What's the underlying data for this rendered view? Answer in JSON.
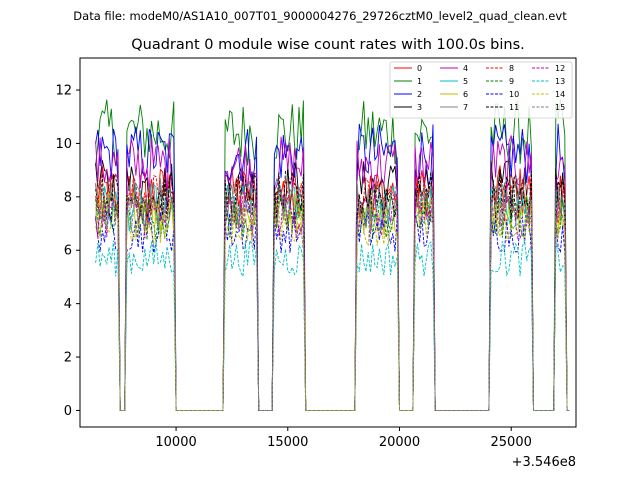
{
  "chart_data": {
    "type": "line",
    "suptitle": "Data file: modeM0/AS1A10_007T01_9000004276_29726cztM0_level2_quad_clean.evt",
    "title": "Quadrant 0 module wise count rates with 100.0s bins.",
    "xlabel": "",
    "ylabel": "",
    "x_offset_label": "+3.546e8",
    "xlim": [
      5700,
      27900
    ],
    "ylim": [
      -0.62,
      13.2
    ],
    "xticks": [
      10000,
      15000,
      20000,
      25000
    ],
    "xtick_labels": [
      "10000",
      "15000",
      "20000",
      "25000"
    ],
    "yticks": [
      0,
      2,
      4,
      6,
      8,
      10,
      12
    ],
    "ytick_labels": [
      "0",
      "2",
      "4",
      "6",
      "8",
      "10",
      "12"
    ],
    "grid": false,
    "legend_position": "top-right",
    "bin_width_s": 100,
    "segments": [
      {
        "start": 6400,
        "end": 7450
      },
      {
        "start": 7800,
        "end": 9900
      },
      {
        "start": 12200,
        "end": 13600
      },
      {
        "start": 14400,
        "end": 15700
      },
      {
        "start": 18100,
        "end": 19950
      },
      {
        "start": 20650,
        "end": 21500
      },
      {
        "start": 24050,
        "end": 25950
      },
      {
        "start": 26950,
        "end": 27400
      }
    ],
    "series": [
      {
        "name": "0",
        "color": "#ff0000",
        "dash": "solid",
        "mean_rate": 8.2
      },
      {
        "name": "1",
        "color": "#008000",
        "dash": "solid",
        "mean_rate": 10.4
      },
      {
        "name": "2",
        "color": "#0000ff",
        "dash": "solid",
        "mean_rate": 9.6
      },
      {
        "name": "3",
        "color": "#000000",
        "dash": "solid",
        "mean_rate": 8.4
      },
      {
        "name": "4",
        "color": "#bf00bf",
        "dash": "solid",
        "mean_rate": 9.2
      },
      {
        "name": "5",
        "color": "#00bfbf",
        "dash": "solid",
        "mean_rate": 7.6
      },
      {
        "name": "6",
        "color": "#bfbf00",
        "dash": "solid",
        "mean_rate": 7.4
      },
      {
        "name": "7",
        "color": "#808080",
        "dash": "solid",
        "mean_rate": 7.8
      },
      {
        "name": "8",
        "color": "#ff0000",
        "dash": "dashed",
        "mean_rate": 7.9
      },
      {
        "name": "9",
        "color": "#008000",
        "dash": "dashed",
        "mean_rate": 7.2
      },
      {
        "name": "10",
        "color": "#0000ff",
        "dash": "dashed",
        "mean_rate": 6.7
      },
      {
        "name": "11",
        "color": "#000000",
        "dash": "dashed",
        "mean_rate": 8.0
      },
      {
        "name": "12",
        "color": "#bf00bf",
        "dash": "dashed",
        "mean_rate": 7.3
      },
      {
        "name": "13",
        "color": "#00bfbf",
        "dash": "dashed",
        "mean_rate": 5.7
      },
      {
        "name": "14",
        "color": "#bfbf00",
        "dash": "dashed",
        "mean_rate": 7.0
      },
      {
        "name": "15",
        "color": "#808080",
        "dash": "dashed",
        "mean_rate": 7.6
      }
    ]
  }
}
